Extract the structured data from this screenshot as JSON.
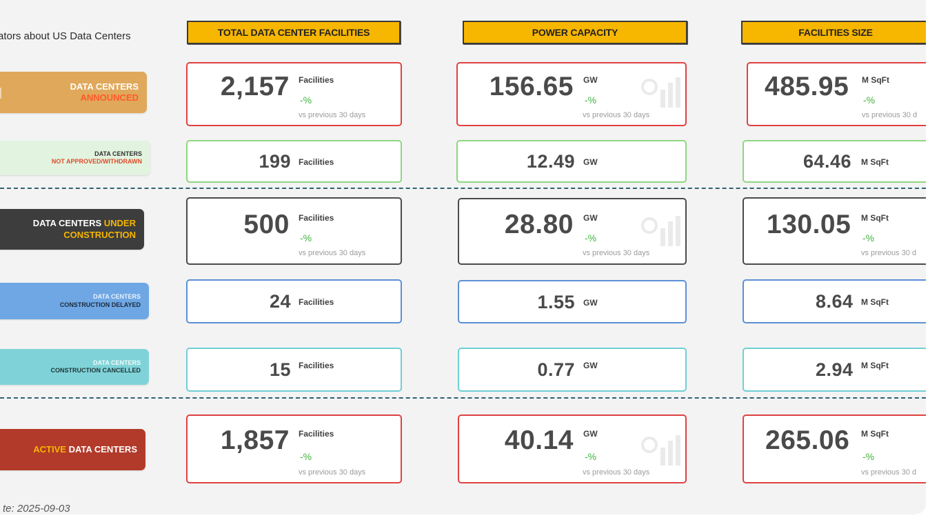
{
  "page_title": "ators about US Data Centers",
  "date_label": "te: 2025-09-03",
  "headers": {
    "total": "TOTAL DATA CENTER FACILITIES",
    "power": "POWER CAPACITY",
    "size": "FACILITIES SIZE"
  },
  "colors": {
    "header": "#f7b600",
    "announced": "#e0a85a",
    "not_approved": "#e2f4df",
    "under_construction": "#3d3d3d",
    "delayed": "#6ea7e4",
    "cancelled": "#7fd3d8",
    "active": "#b23a2a",
    "positive_change": "#3fb43f",
    "separator": "#2e5f74"
  },
  "rows": {
    "announced": {
      "label_line1": "DATA CENTERS",
      "label_line2": "ANNOUNCED",
      "icon": "building-icon",
      "total": {
        "value": "2,157",
        "unit": "Facilities",
        "change": "-%",
        "compare": "vs previous 30 days"
      },
      "power": {
        "value": "156.65",
        "unit": "GW",
        "change": "-%",
        "compare": "vs previous 30 days"
      },
      "size": {
        "value": "485.95",
        "unit": "M SqFt",
        "change": "-%",
        "compare": "vs previous 30 d"
      }
    },
    "not_approved": {
      "label_line1": "DATA CENTERS",
      "label_line2": "NOT APPROVED/WITHDRAWN",
      "total": {
        "value": "199",
        "unit": "Facilities"
      },
      "power": {
        "value": "12.49",
        "unit": "GW"
      },
      "size": {
        "value": "64.46",
        "unit": "M SqFt"
      }
    },
    "under_construction": {
      "label_part1": "DATA CENTERS ",
      "label_part2": "UNDER",
      "label_line2": "CONSTRUCTION",
      "icon": "crane-icon",
      "total": {
        "value": "500",
        "unit": "Facilities",
        "change": "-%",
        "compare": "vs previous 30 days"
      },
      "power": {
        "value": "28.80",
        "unit": "GW",
        "change": "-%",
        "compare": "vs previous 30 days"
      },
      "size": {
        "value": "130.05",
        "unit": "M SqFt",
        "change": "-%",
        "compare": "vs previous 30 d"
      }
    },
    "delayed": {
      "label_line1": "DATA CENTERS",
      "label_line2": "CONSTRUCTION DELAYED",
      "icon": "worker-icon",
      "total": {
        "value": "24",
        "unit": "Facilities"
      },
      "power": {
        "value": "1.55",
        "unit": "GW"
      },
      "size": {
        "value": "8.64",
        "unit": "M SqFt"
      }
    },
    "cancelled": {
      "label_line1": "DATA CENTERS",
      "label_line2": "CONSTRUCTION CANCELLED",
      "icon": "cancel-icon",
      "total": {
        "value": "15",
        "unit": "Facilities"
      },
      "power": {
        "value": "0.77",
        "unit": "GW"
      },
      "size": {
        "value": "2.94",
        "unit": "M SqFt"
      }
    },
    "active": {
      "label_part1": "ACTIVE",
      "label_part2": " DATA CENTERS",
      "total": {
        "value": "1,857",
        "unit": "Facilities",
        "change": "-%",
        "compare": "vs previous 30 days"
      },
      "power": {
        "value": "40.14",
        "unit": "GW",
        "change": "-%",
        "compare": "vs previous 30 days"
      },
      "size": {
        "value": "265.06",
        "unit": "M SqFt",
        "change": "-%",
        "compare": "vs previous 30 d"
      }
    }
  }
}
